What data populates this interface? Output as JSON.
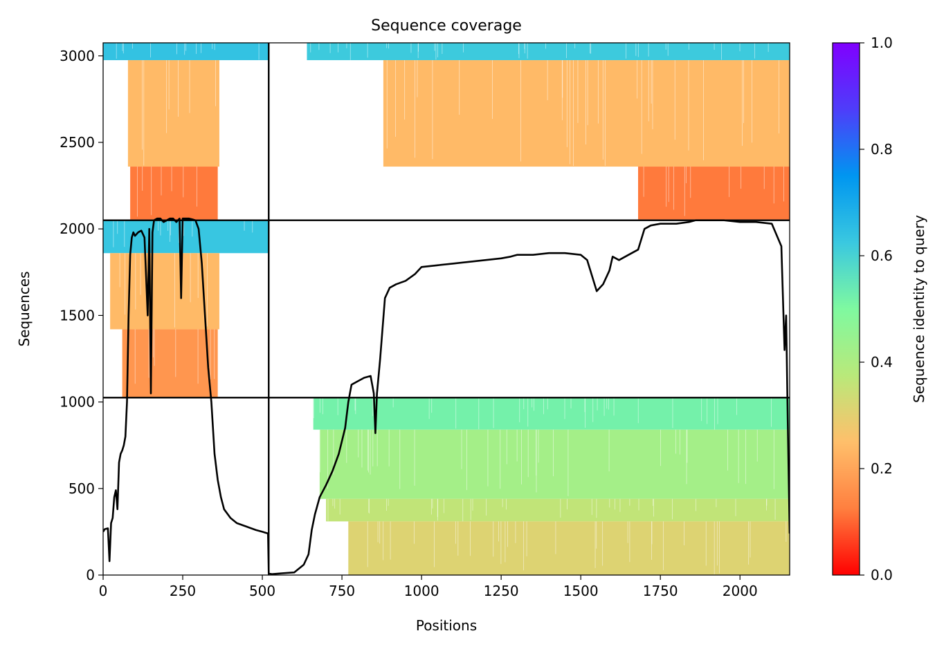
{
  "chart_data": {
    "type": "heatmap",
    "title": "Sequence coverage",
    "xlabel": "Positions",
    "ylabel": "Sequences",
    "xlim": [
      0,
      2156
    ],
    "ylim": [
      0,
      3075
    ],
    "xticks": [
      0,
      250,
      500,
      750,
      1000,
      1250,
      1500,
      1750,
      2000
    ],
    "yticks": [
      0,
      500,
      1000,
      1500,
      2000,
      2500,
      3000
    ],
    "colorbar": {
      "label": "Sequence identity to query",
      "range": [
        0,
        1
      ],
      "ticks": [
        "0.0",
        "0.2",
        "0.4",
        "0.6",
        "0.8",
        "1.0"
      ],
      "colormap": [
        "#ff0000",
        "#ff7f3f",
        "#ffbf6b",
        "#b9e97a",
        "#7ff9a0",
        "#3ac8e0",
        "#0096f0",
        "#4e3dfa",
        "#8000ff"
      ]
    },
    "grid": false,
    "chain_boundaries_x": [
      520
    ],
    "chain_boundaries_y": [
      1025,
      2050
    ],
    "blocks": [
      {
        "x0": 0,
        "x1": 520,
        "y0": 2975,
        "y1": 3075,
        "identity": 0.64
      },
      {
        "x0": 78,
        "x1": 365,
        "y0": 2360,
        "y1": 2975,
        "identity": 0.24
      },
      {
        "x0": 85,
        "x1": 360,
        "y0": 2055,
        "y1": 2360,
        "identity": 0.12
      },
      {
        "x0": 640,
        "x1": 2156,
        "y0": 2975,
        "y1": 3075,
        "identity": 0.62
      },
      {
        "x0": 880,
        "x1": 2156,
        "y0": 2360,
        "y1": 2975,
        "identity": 0.24
      },
      {
        "x0": 1680,
        "x1": 2156,
        "y0": 2055,
        "y1": 2360,
        "identity": 0.12
      },
      {
        "x0": 0,
        "x1": 520,
        "y0": 1860,
        "y1": 2050,
        "identity": 0.63
      },
      {
        "x0": 22,
        "x1": 365,
        "y0": 1420,
        "y1": 1860,
        "identity": 0.24
      },
      {
        "x0": 60,
        "x1": 360,
        "y0": 1025,
        "y1": 1420,
        "identity": 0.17
      },
      {
        "x0": 660,
        "x1": 2156,
        "y0": 840,
        "y1": 1025,
        "identity": 0.52
      },
      {
        "x0": 680,
        "x1": 2156,
        "y0": 440,
        "y1": 840,
        "identity": 0.42
      },
      {
        "x0": 700,
        "x1": 2156,
        "y0": 310,
        "y1": 440,
        "identity": 0.36
      },
      {
        "x0": 770,
        "x1": 2156,
        "y0": 0,
        "y1": 310,
        "identity": 0.31
      }
    ],
    "coverage_line": {
      "x": [
        0,
        5,
        15,
        20,
        25,
        30,
        35,
        40,
        45,
        50,
        55,
        60,
        65,
        70,
        75,
        80,
        85,
        90,
        95,
        100,
        110,
        120,
        130,
        140,
        145,
        150,
        155,
        160,
        170,
        180,
        190,
        200,
        210,
        220,
        230,
        240,
        245,
        250,
        260,
        270,
        280,
        290,
        300,
        310,
        320,
        330,
        340,
        350,
        360,
        370,
        380,
        400,
        420,
        450,
        480,
        500,
        518,
        520,
        530,
        560,
        600,
        630,
        645,
        655,
        665,
        680,
        700,
        720,
        740,
        760,
        770,
        780,
        800,
        820,
        840,
        850,
        855,
        860,
        870,
        885,
        900,
        920,
        950,
        980,
        1000,
        1050,
        1100,
        1150,
        1200,
        1250,
        1280,
        1300,
        1350,
        1400,
        1450,
        1500,
        1520,
        1540,
        1550,
        1570,
        1590,
        1600,
        1620,
        1650,
        1680,
        1700,
        1720,
        1750,
        1800,
        1840,
        1860,
        1900,
        1950,
        2000,
        2050,
        2100,
        2130,
        2140,
        2145,
        2150,
        2156
      ],
      "y": [
        250,
        265,
        270,
        80,
        300,
        330,
        450,
        490,
        380,
        650,
        700,
        720,
        750,
        800,
        1000,
        1500,
        1850,
        1950,
        1980,
        1960,
        1980,
        1990,
        1950,
        1500,
        2000,
        1050,
        1980,
        2050,
        2060,
        2060,
        2040,
        2050,
        2060,
        2060,
        2040,
        2060,
        1600,
        2060,
        2060,
        2060,
        2055,
        2050,
        2000,
        1800,
        1500,
        1200,
        1000,
        700,
        550,
        450,
        380,
        330,
        300,
        280,
        260,
        250,
        240,
        10,
        5,
        10,
        15,
        60,
        120,
        260,
        350,
        450,
        520,
        600,
        700,
        850,
        1000,
        1100,
        1120,
        1140,
        1150,
        1050,
        820,
        1050,
        1250,
        1600,
        1660,
        1680,
        1700,
        1740,
        1780,
        1790,
        1800,
        1810,
        1820,
        1830,
        1840,
        1850,
        1850,
        1860,
        1860,
        1850,
        1820,
        1700,
        1640,
        1680,
        1760,
        1840,
        1820,
        1850,
        1880,
        2000,
        2020,
        2030,
        2030,
        2040,
        2050,
        2050,
        2050,
        2040,
        2040,
        2030,
        1900,
        1300,
        1500,
        900,
        240
      ]
    }
  }
}
